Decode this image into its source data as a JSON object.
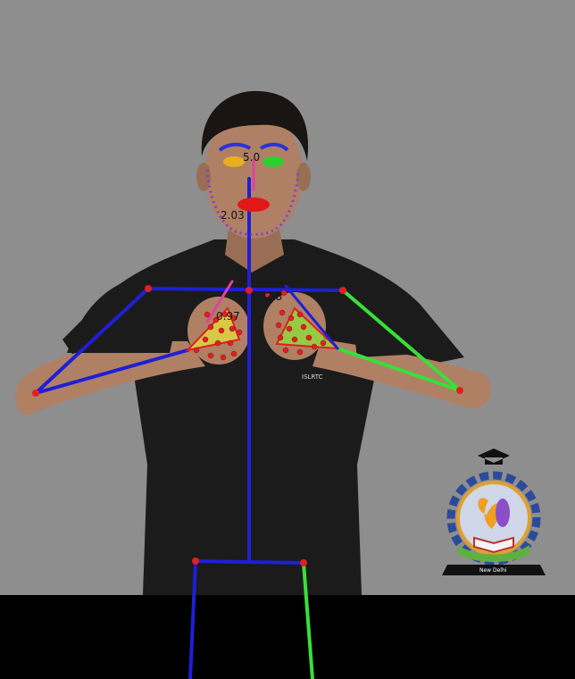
{
  "overlay": {
    "nose_value": "5.0",
    "chin_value": "2.03",
    "hand_left_value": "0.97",
    "hand_right_value": "2.8"
  },
  "shirt_logo": "ISLRTC",
  "emblem": {
    "seal_text": "New Delhi"
  },
  "colors": {
    "background": "#8e8e8e",
    "spine": "#1f1fd6",
    "limb_right": "#38e038",
    "joint": "#e02020",
    "lips": "#e01818",
    "face_contour": "#7b3fd6",
    "eye_left": "#e8b020",
    "eye_right": "#2bd030",
    "brow": "#2a32d8"
  }
}
